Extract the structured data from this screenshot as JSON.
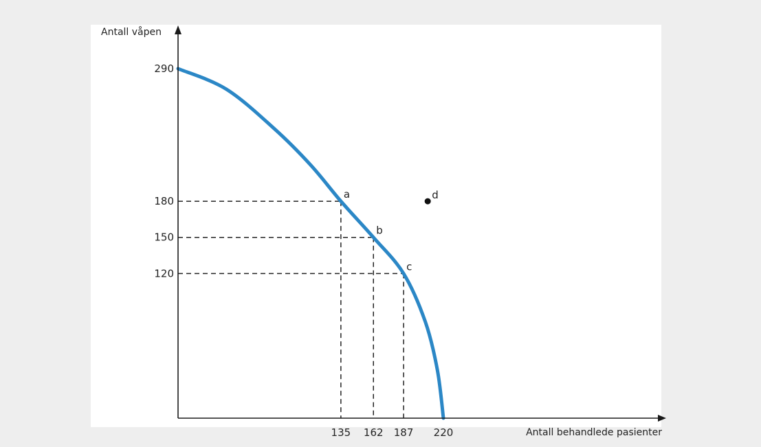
{
  "chart_data": {
    "type": "line",
    "title": "",
    "xlabel": "Antall behandlede pasienter",
    "ylabel": "Antall våpen",
    "xlim": [
      0,
      220
    ],
    "ylim": [
      0,
      290
    ],
    "x_ticks": [
      135,
      162,
      187,
      220
    ],
    "y_ticks": [
      120,
      150,
      180,
      290
    ],
    "grid": false,
    "legend": "none",
    "series": [
      {
        "x": [
          0,
          40,
          80,
          110,
          135,
          162,
          187,
          205,
          215,
          220
        ],
        "y": [
          290,
          273,
          240,
          210,
          180,
          150,
          120,
          80,
          40,
          0
        ]
      }
    ],
    "points": [
      {
        "label": "a",
        "x": 135,
        "y": 180,
        "on_curve": true
      },
      {
        "label": "b",
        "x": 162,
        "y": 150,
        "on_curve": true
      },
      {
        "label": "c",
        "x": 187,
        "y": 120,
        "on_curve": true
      },
      {
        "label": "d",
        "x": 207,
        "y": 180,
        "on_curve": false
      }
    ],
    "colors": {
      "curve": "#2b87c6",
      "axis": "#1a1a1a",
      "background": "#eeeeee",
      "plot_background": "#ffffff"
    }
  }
}
